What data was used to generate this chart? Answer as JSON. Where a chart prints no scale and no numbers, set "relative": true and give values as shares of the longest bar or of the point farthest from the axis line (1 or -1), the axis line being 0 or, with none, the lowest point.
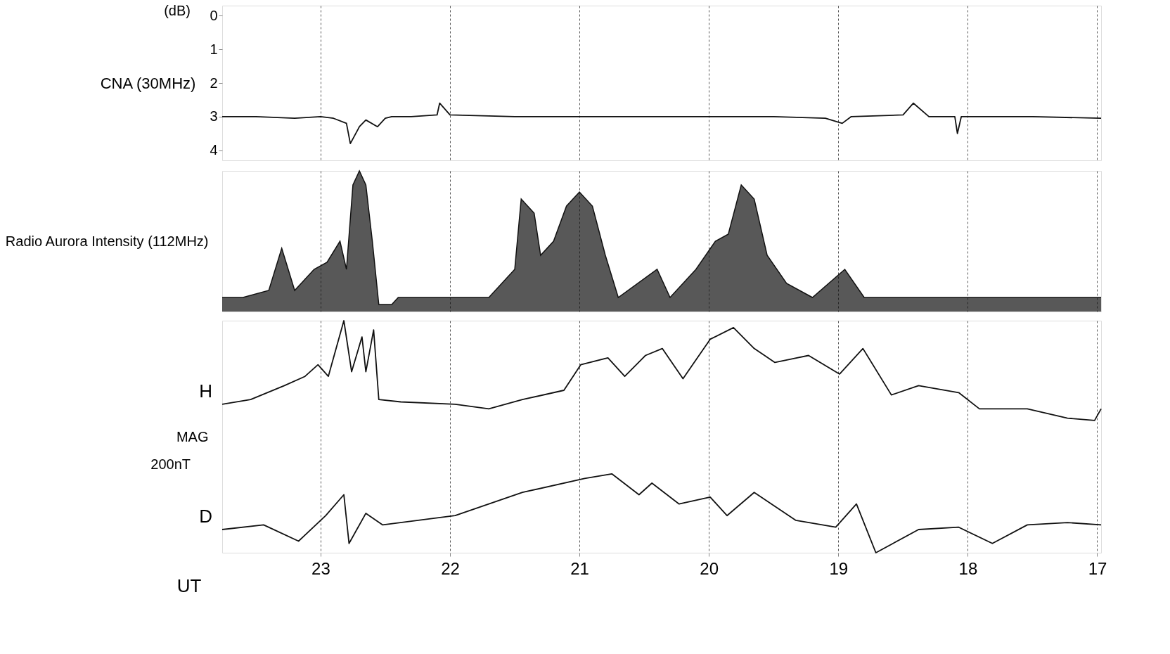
{
  "chart_data": [
    {
      "type": "line",
      "ylabel": "CNA (30MHz)",
      "annotations": [
        "(dB)"
      ],
      "xlim": [
        23.76,
        16.97
      ],
      "xticks": [
        23,
        22,
        21,
        20,
        19,
        18,
        17
      ],
      "ylim": [
        4.3,
        -0.3
      ],
      "yticks": [
        0,
        1,
        2,
        3,
        4
      ],
      "grid": "x",
      "tick_labels": "y",
      "series": [
        {
          "color": "#111111",
          "x": [
            23.76,
            23.5,
            23.2,
            23.0,
            22.9,
            22.8,
            22.77,
            22.7,
            22.65,
            22.56,
            22.5,
            22.45,
            22.3,
            22.1,
            22.08,
            22.0,
            21.5,
            21.0,
            20.5,
            20.0,
            19.5,
            19.1,
            18.97,
            18.9,
            18.5,
            18.42,
            18.3,
            18.1,
            18.08,
            18.05,
            17.5,
            16.97
          ],
          "values": [
            3.0,
            3.0,
            3.05,
            3.0,
            3.05,
            3.2,
            3.8,
            3.3,
            3.1,
            3.3,
            3.05,
            3.0,
            3.0,
            2.95,
            2.6,
            2.95,
            3.0,
            3.0,
            3.0,
            3.0,
            3.0,
            3.05,
            3.2,
            3.0,
            2.95,
            2.6,
            3.0,
            3.0,
            3.5,
            3.0,
            3.0,
            3.05
          ]
        }
      ]
    },
    {
      "type": "area",
      "relative": true,
      "ylabel": "Radio Aurora Intensity (112MHz)",
      "xlim": [
        23.76,
        16.97
      ],
      "xticks": [
        23,
        22,
        21,
        20,
        19,
        18,
        17
      ],
      "grid": "x",
      "tick_labels": false,
      "series": [
        {
          "color": "#111111",
          "x": [
            23.76,
            23.6,
            23.4,
            23.3,
            23.2,
            23.05,
            22.95,
            22.85,
            22.8,
            22.75,
            22.7,
            22.65,
            22.6,
            22.55,
            22.45,
            22.4,
            22.0,
            21.7,
            21.6,
            21.5,
            21.45,
            21.35,
            21.3,
            21.2,
            21.1,
            21.0,
            20.9,
            20.8,
            20.7,
            20.4,
            20.3,
            20.1,
            19.95,
            19.85,
            19.75,
            19.65,
            19.55,
            19.4,
            19.2,
            18.95,
            18.8,
            18.0,
            17.5,
            16.97
          ],
          "values": [
            0.1,
            0.1,
            0.15,
            0.45,
            0.15,
            0.3,
            0.35,
            0.5,
            0.3,
            0.9,
            1.0,
            0.9,
            0.5,
            0.05,
            0.05,
            0.1,
            0.1,
            0.1,
            0.2,
            0.3,
            0.8,
            0.7,
            0.4,
            0.5,
            0.75,
            0.85,
            0.75,
            0.4,
            0.1,
            0.3,
            0.1,
            0.3,
            0.5,
            0.55,
            0.9,
            0.8,
            0.4,
            0.2,
            0.1,
            0.3,
            0.1,
            0.1,
            0.1,
            0.1
          ]
        }
      ]
    },
    {
      "type": "line",
      "relative": true,
      "ylabel": "MAG",
      "xlabel": "UT",
      "annotations": [
        "200nT"
      ],
      "xlim": [
        23.76,
        16.97
      ],
      "xticks": [
        23,
        22,
        21,
        20,
        19,
        18,
        17
      ],
      "grid": "x",
      "tick_labels": "x",
      "series": [
        {
          "name": "H",
          "color": "#111111",
          "x": [
            23.76,
            23.54,
            23.28,
            23.12,
            23.02,
            22.94,
            22.82,
            22.76,
            22.68,
            22.65,
            22.59,
            22.55,
            22.38,
            21.96,
            21.7,
            21.44,
            21.12,
            20.99,
            20.78,
            20.65,
            20.49,
            20.36,
            20.2,
            19.99,
            19.81,
            19.65,
            19.49,
            19.23,
            18.99,
            18.81,
            18.59,
            18.38,
            18.07,
            17.91,
            17.54,
            17.23,
            17.02,
            16.97
          ],
          "values": [
            0.64,
            0.66,
            0.72,
            0.76,
            0.81,
            0.76,
            1.0,
            0.78,
            0.93,
            0.78,
            0.96,
            0.66,
            0.65,
            0.64,
            0.62,
            0.66,
            0.7,
            0.81,
            0.84,
            0.76,
            0.85,
            0.88,
            0.75,
            0.92,
            0.97,
            0.88,
            0.82,
            0.85,
            0.77,
            0.88,
            0.68,
            0.72,
            0.69,
            0.62,
            0.62,
            0.58,
            0.57,
            0.62
          ]
        },
        {
          "name": "D",
          "color": "#111111",
          "x": [
            23.76,
            23.44,
            23.17,
            22.96,
            22.82,
            22.78,
            22.65,
            22.52,
            21.96,
            21.44,
            20.96,
            20.75,
            20.54,
            20.44,
            20.23,
            19.99,
            19.86,
            19.65,
            19.33,
            19.02,
            18.86,
            18.71,
            18.38,
            18.07,
            17.81,
            17.54,
            17.23,
            16.97
          ],
          "values": [
            0.1,
            0.12,
            0.05,
            0.16,
            0.25,
            0.04,
            0.17,
            0.12,
            0.16,
            0.26,
            0.32,
            0.34,
            0.25,
            0.3,
            0.21,
            0.24,
            0.16,
            0.26,
            0.14,
            0.11,
            0.21,
            0.0,
            0.1,
            0.11,
            0.04,
            0.12,
            0.13,
            0.12
          ]
        }
      ]
    }
  ]
}
